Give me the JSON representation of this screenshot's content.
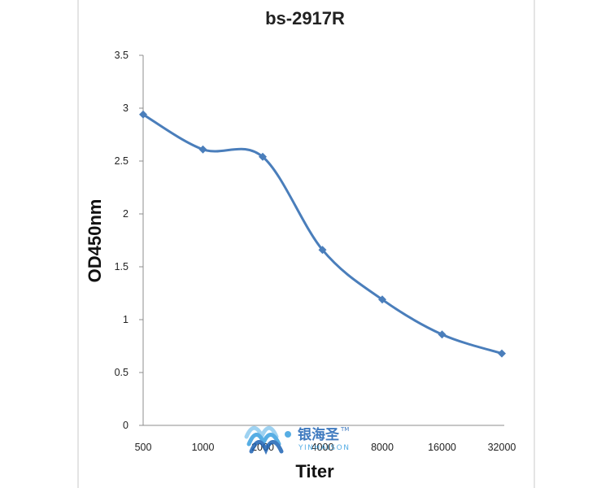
{
  "chart_data": {
    "type": "line",
    "title": "bs-2917R",
    "xlabel": "Titer",
    "ylabel": "OD450nm",
    "categories": [
      "500",
      "1000",
      "2000",
      "4000",
      "8000",
      "16000",
      "32000"
    ],
    "series": [
      {
        "values": [
          2.94,
          2.61,
          2.54,
          1.66,
          1.19,
          0.86,
          0.68
        ],
        "color": "#4a7ebb",
        "marker": "diamond"
      }
    ],
    "ylim": [
      0,
      3.5
    ],
    "yticks": [
      "0",
      "0.5",
      "1",
      "1.5",
      "2",
      "2.5",
      "3",
      "3.5"
    ],
    "grid": false,
    "legend": "none",
    "smooth": true
  },
  "watermark": {
    "brand": "银海圣",
    "trademark": "TM",
    "latin": "YINHAISON",
    "colors": [
      "#1e63b5",
      "#3aa0e0",
      "#8ecbef"
    ]
  }
}
